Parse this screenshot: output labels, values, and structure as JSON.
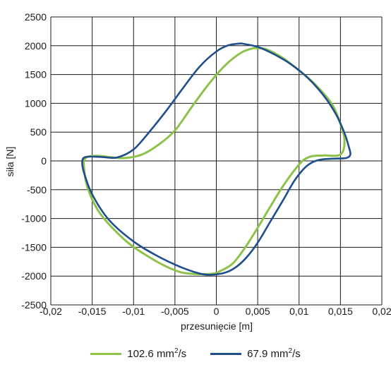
{
  "chart_data": {
    "type": "line",
    "xlabel": "przesunięcie [m]",
    "ylabel": "siła [N]",
    "xlim": [
      -0.02,
      0.02
    ],
    "ylim": [
      -2500,
      2500
    ],
    "x_ticks": [
      "-0,02",
      "-0,015",
      "-0,01",
      "-0,005",
      "0",
      "0,005",
      "0,01",
      "0,015",
      "0,02"
    ],
    "y_ticks": [
      "2500",
      "2000",
      "1500",
      "1000",
      "500",
      "0",
      "-500",
      "-1000",
      "-1500",
      "-2000",
      "-2500"
    ],
    "grid": true,
    "legend_position": "bottom",
    "series": [
      {
        "name": "102.6 mm2/s",
        "legend": {
          "base": "102.6 mm",
          "sup": "2",
          "tail": "/s"
        },
        "color": "#8cc24a",
        "points": [
          [
            0.0045,
            1960
          ],
          [
            0.006,
            1940
          ],
          [
            0.008,
            1790
          ],
          [
            0.01,
            1570
          ],
          [
            0.012,
            1320
          ],
          [
            0.014,
            980
          ],
          [
            0.015,
            640
          ],
          [
            0.0155,
            350
          ],
          [
            0.015,
            110
          ],
          [
            0.013,
            95
          ],
          [
            0.0115,
            80
          ],
          [
            0.0105,
            10
          ],
          [
            0.0095,
            -150
          ],
          [
            0.008,
            -450
          ],
          [
            0.0065,
            -800
          ],
          [
            0.005,
            -1160
          ],
          [
            0.0035,
            -1500
          ],
          [
            0.002,
            -1780
          ],
          [
            0.0005,
            -1910
          ],
          [
            -0.0005,
            -1960
          ],
          [
            -0.003,
            -1960
          ],
          [
            -0.005,
            -1900
          ],
          [
            -0.008,
            -1680
          ],
          [
            -0.011,
            -1380
          ],
          [
            -0.014,
            -920
          ],
          [
            -0.0155,
            -490
          ],
          [
            -0.016,
            -100
          ],
          [
            -0.0158,
            50
          ],
          [
            -0.0145,
            90
          ],
          [
            -0.0125,
            60
          ],
          [
            -0.011,
            50
          ],
          [
            -0.009,
            110
          ],
          [
            -0.007,
            280
          ],
          [
            -0.005,
            530
          ],
          [
            -0.003,
            930
          ],
          [
            -0.001,
            1320
          ],
          [
            0.001,
            1650
          ],
          [
            0.003,
            1880
          ],
          [
            0.0045,
            1960
          ]
        ]
      },
      {
        "name": "67.9 mm2/s",
        "legend": {
          "base": "67.9 mm",
          "sup": "2",
          "tail": "/s"
        },
        "color": "#1f4e8c",
        "points": [
          [
            0.003,
            2040
          ],
          [
            0.005,
            1980
          ],
          [
            0.007,
            1850
          ],
          [
            0.009,
            1680
          ],
          [
            0.011,
            1450
          ],
          [
            0.013,
            1130
          ],
          [
            0.0145,
            800
          ],
          [
            0.0155,
            480
          ],
          [
            0.016,
            250
          ],
          [
            0.0162,
            110
          ],
          [
            0.0157,
            50
          ],
          [
            0.0145,
            40
          ],
          [
            0.0125,
            20
          ],
          [
            0.011,
            -80
          ],
          [
            0.0095,
            -330
          ],
          [
            0.008,
            -700
          ],
          [
            0.0065,
            -1060
          ],
          [
            0.005,
            -1420
          ],
          [
            0.0035,
            -1700
          ],
          [
            0.002,
            -1880
          ],
          [
            0.0005,
            -1960
          ],
          [
            -0.0015,
            -1970
          ],
          [
            -0.004,
            -1860
          ],
          [
            -0.007,
            -1660
          ],
          [
            -0.01,
            -1400
          ],
          [
            -0.013,
            -1020
          ],
          [
            -0.015,
            -580
          ],
          [
            -0.016,
            -200
          ],
          [
            -0.0162,
            0
          ],
          [
            -0.0157,
            70
          ],
          [
            -0.014,
            70
          ],
          [
            -0.012,
            60
          ],
          [
            -0.01,
            200
          ],
          [
            -0.008,
            520
          ],
          [
            -0.006,
            880
          ],
          [
            -0.004,
            1270
          ],
          [
            -0.002,
            1640
          ],
          [
            0.0,
            1900
          ],
          [
            0.0015,
            2010
          ],
          [
            0.003,
            2040
          ]
        ]
      }
    ]
  }
}
